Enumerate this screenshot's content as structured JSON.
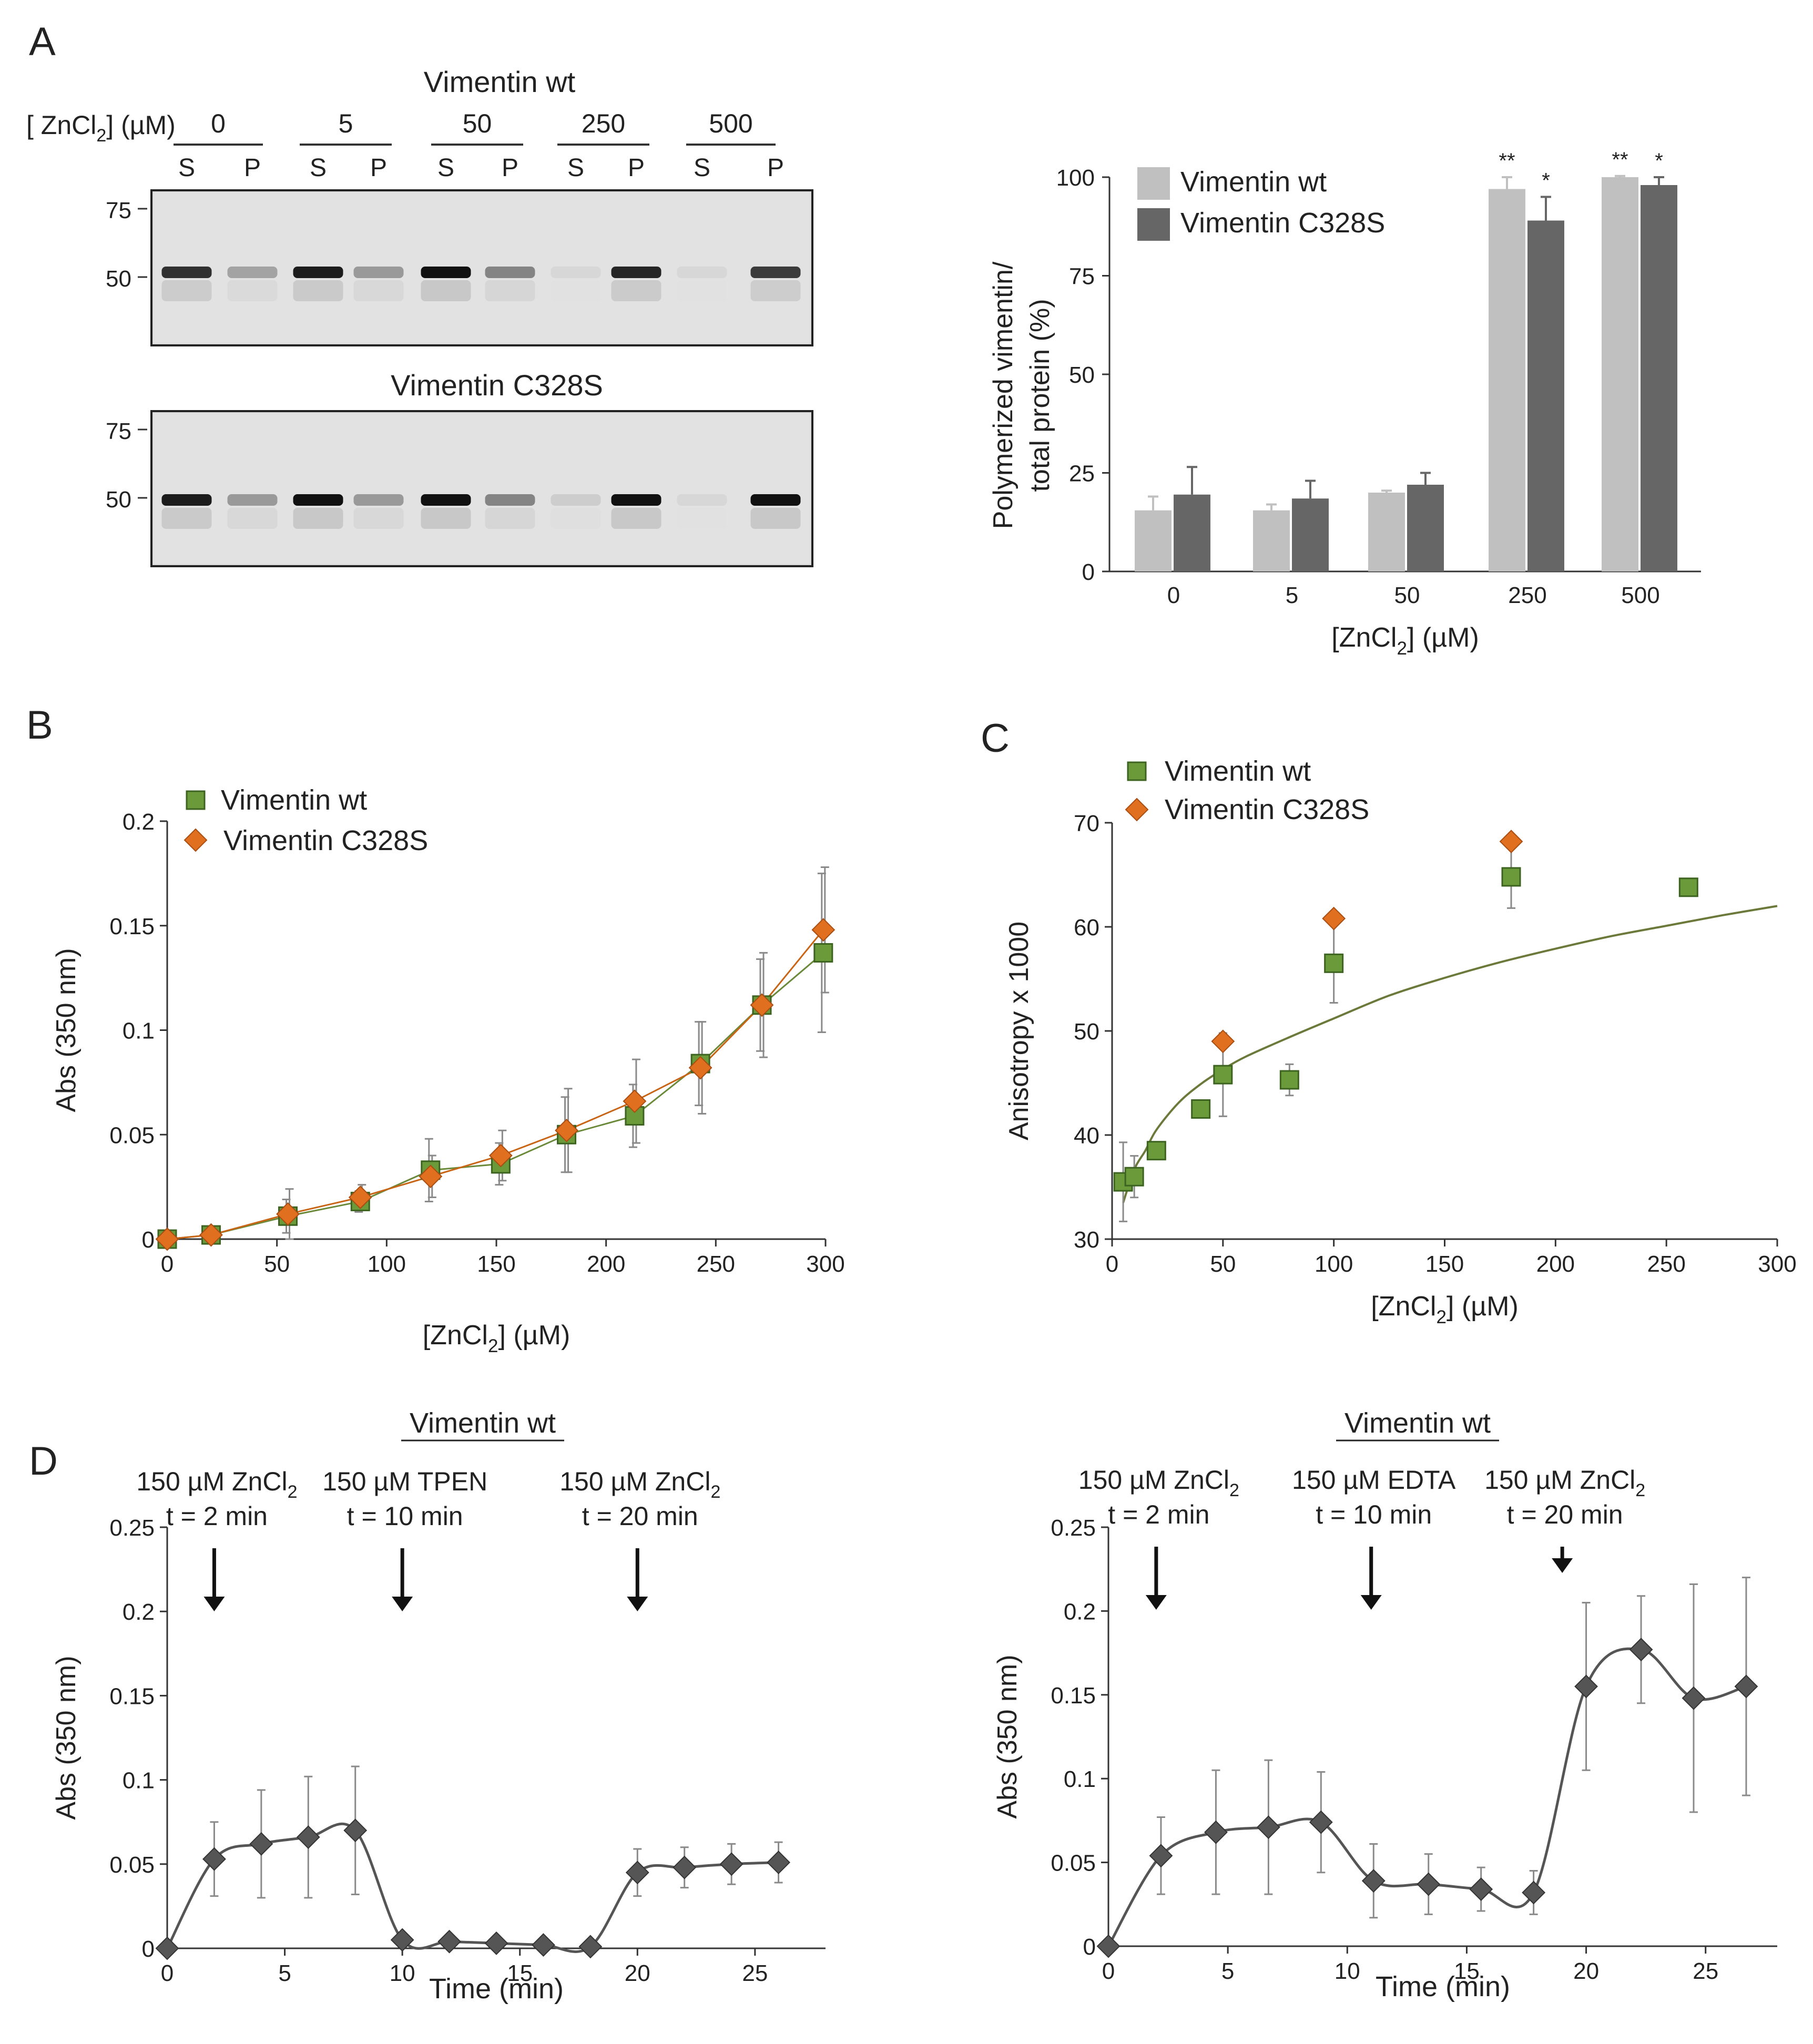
{
  "panel_labels": {
    "a": "A",
    "b": "B",
    "c": "C",
    "d": "D"
  },
  "colors": {
    "wt_bar": "#c0c0c0",
    "c328s_bar": "#666666",
    "wt_marker": "#6a9a3a",
    "c328s_marker": "#e07020",
    "line_gray": "#555555",
    "fit_line": "#6b7a3a"
  },
  "gels": {
    "wt_title": "Vimentin wt",
    "c328s_title": "Vimentin C328S",
    "conc_label_prefix": "[ ZnCl",
    "conc_label_sub": "2",
    "conc_label_suffix": "] (µM)",
    "concentrations": [
      "0",
      "5",
      "50",
      "250",
      "500"
    ],
    "fractions": [
      "S",
      "P",
      "S",
      "P",
      "S",
      "P",
      "S",
      "P",
      "S",
      "P"
    ],
    "markers": [
      "75",
      "50"
    ],
    "wt_band_intensity": [
      0.85,
      0.3,
      0.95,
      0.35,
      1.0,
      0.45,
      0.05,
      0.9,
      0.05,
      0.8
    ],
    "c328s_band_intensity": [
      0.95,
      0.35,
      1.0,
      0.35,
      1.0,
      0.45,
      0.1,
      1.0,
      0.05,
      1.0
    ]
  },
  "chart_data": [
    {
      "id": "A-bar",
      "type": "bar",
      "categories": [
        "0",
        "5",
        "50",
        "250",
        "500"
      ],
      "series": [
        {
          "name": "Vimentin wt",
          "values": [
            15.5,
            15.5,
            20,
            97,
            100
          ],
          "errors": [
            3.5,
            1.5,
            0.5,
            3,
            0.3
          ]
        },
        {
          "name": "Vimentin C328S",
          "values": [
            19.5,
            18.5,
            22,
            89,
            98
          ],
          "errors": [
            7,
            4.5,
            3,
            6,
            2
          ]
        }
      ],
      "significance": {
        "250": [
          "**",
          "*"
        ],
        "500": [
          "**",
          "*"
        ]
      },
      "yticks": [
        "0",
        "25",
        "50",
        "75",
        "100"
      ],
      "ylim": [
        0,
        100
      ],
      "ylabel_line1": "Polymerized vimentin/",
      "ylabel_line2": "total protein (%)",
      "xlabel_prefix": "[ZnCl",
      "xlabel_sub": "2",
      "xlabel_suffix": "] (µM)",
      "legend": [
        "Vimentin wt",
        "Vimentin C328S"
      ]
    },
    {
      "id": "B",
      "type": "line",
      "xlim": [
        0,
        300
      ],
      "ylim": [
        0,
        0.2
      ],
      "xticks": [
        "0",
        "50",
        "100",
        "150",
        "200",
        "250",
        "300"
      ],
      "yticks": [
        "0",
        "0.05",
        "0.1",
        "0.15",
        "0.2"
      ],
      "ylabel": "Abs (350 nm)",
      "xlabel_prefix": "[ZnCl",
      "xlabel_sub": "2",
      "xlabel_suffix": "] (µM)",
      "legend": [
        "Vimentin wt",
        "Vimentin C328S"
      ],
      "series": [
        {
          "name": "Vimentin wt",
          "x": [
            0,
            20,
            55,
            88,
            120,
            152,
            182,
            213,
            243,
            271,
            299
          ],
          "y": [
            0,
            0.002,
            0.011,
            0.018,
            0.033,
            0.036,
            0.05,
            0.059,
            0.084,
            0.112,
            0.137
          ],
          "err": [
            0,
            0.002,
            0.008,
            0.005,
            0.015,
            0.01,
            0.018,
            0.015,
            0.02,
            0.022,
            0.038
          ]
        },
        {
          "name": "Vimentin C328S",
          "x": [
            0,
            20,
            55,
            88,
            120,
            152,
            182,
            213,
            243,
            271,
            299
          ],
          "y": [
            0,
            0.002,
            0.012,
            0.02,
            0.03,
            0.04,
            0.052,
            0.066,
            0.082,
            0.112,
            0.148
          ],
          "err": [
            0,
            0.002,
            0.012,
            0.006,
            0.01,
            0.012,
            0.02,
            0.02,
            0.022,
            0.025,
            0.03
          ]
        }
      ]
    },
    {
      "id": "C",
      "type": "scatter",
      "xlim": [
        0,
        300
      ],
      "ylim": [
        30,
        70
      ],
      "xticks": [
        "0",
        "50",
        "100",
        "150",
        "200",
        "250",
        "300"
      ],
      "yticks": [
        "30",
        "40",
        "50",
        "60",
        "70"
      ],
      "ylabel": "Anisotropy x 1000",
      "xlabel_prefix": "[ZnCl",
      "xlabel_sub": "2",
      "xlabel_suffix": "] (µM)",
      "legend": [
        "Vimentin wt",
        "Vimentin C328S"
      ],
      "series": [
        {
          "name": "Vimentin wt",
          "x": [
            5,
            10,
            20,
            40,
            50,
            80,
            100,
            180,
            260
          ],
          "y": [
            35.5,
            36,
            38.5,
            42.5,
            45.8,
            45.3,
            56.5,
            64.8,
            63.8
          ],
          "err": [
            3.8,
            2.0,
            0.6,
            0.8,
            4.0,
            1.5,
            3.8,
            3.0,
            0.8
          ]
        },
        {
          "name": "Vimentin C328S",
          "x": [
            50,
            100,
            180
          ],
          "y": [
            49,
            60.8,
            68.2
          ],
          "err": [
            0,
            0,
            0
          ]
        }
      ],
      "fit": {
        "x": [
          5,
          10,
          15,
          20,
          30,
          40,
          50,
          60,
          80,
          100,
          125,
          150,
          175,
          200,
          225,
          250,
          275,
          300
        ],
        "y": [
          33.5,
          36.7,
          38.5,
          40.5,
          43.1,
          44.9,
          46.3,
          47.5,
          49.4,
          51.2,
          53.4,
          55.1,
          56.6,
          57.9,
          59.1,
          60.1,
          61.1,
          62.0
        ]
      }
    },
    {
      "id": "D-left",
      "type": "line",
      "title": "Vimentin wt",
      "xlim": [
        0,
        28
      ],
      "ylim": [
        0,
        0.25
      ],
      "xticks": [
        "0",
        "5",
        "10",
        "15",
        "20",
        "25"
      ],
      "yticks": [
        "0",
        "0.05",
        "0.1",
        "0.15",
        "0.2",
        "0.25"
      ],
      "ylabel": "Abs (350 nm)",
      "xlabel": "Time (min)",
      "annotations": [
        {
          "line1": "150 µM ZnCl",
          "sub": "2",
          "line2": "t = 2 min",
          "x": 2
        },
        {
          "line1": "150 µM TPEN",
          "sub": "",
          "line2": "t = 10 min",
          "x": 10
        },
        {
          "line1": "150 µM ZnCl",
          "sub": "2",
          "line2": "t = 20 min",
          "x": 20
        }
      ],
      "series": [
        {
          "name": "Vimentin wt",
          "x": [
            0,
            2,
            4,
            6,
            8,
            10,
            12,
            14,
            16,
            18,
            20,
            22,
            24,
            26
          ],
          "y": [
            0,
            0.053,
            0.062,
            0.066,
            0.07,
            0.005,
            0.004,
            0.003,
            0.002,
            0.001,
            0.045,
            0.048,
            0.05,
            0.051
          ],
          "err": [
            0,
            0.022,
            0.032,
            0.036,
            0.038,
            0,
            0,
            0,
            0,
            0,
            0.014,
            0.012,
            0.012,
            0.012
          ]
        }
      ]
    },
    {
      "id": "D-right",
      "type": "line",
      "title": "Vimentin wt",
      "xlim": [
        0,
        28
      ],
      "ylim": [
        0,
        0.25
      ],
      "xticks": [
        "0",
        "5",
        "10",
        "15",
        "20",
        "25"
      ],
      "yticks": [
        "0",
        "0.05",
        "0.1",
        "0.15",
        "0.2",
        "0.25"
      ],
      "ylabel": "Abs (350 nm)",
      "xlabel": "Time (min)",
      "annotations": [
        {
          "line1": "150 µM ZnCl",
          "sub": "2",
          "line2": "t = 2 min",
          "x": 2
        },
        {
          "line1": "150 µM EDTA",
          "sub": "",
          "line2": "t = 10 min",
          "x": 11
        },
        {
          "line1": "150 µM ZnCl",
          "sub": "2",
          "line2": "t = 20 min",
          "x": 19
        }
      ],
      "series": [
        {
          "name": "Vimentin wt",
          "x": [
            0,
            2.2,
            4.5,
            6.7,
            8.9,
            11.1,
            13.4,
            15.6,
            17.8,
            20,
            22.3,
            24.5,
            26.7
          ],
          "y": [
            0,
            0.054,
            0.068,
            0.071,
            0.074,
            0.039,
            0.037,
            0.034,
            0.032,
            0.155,
            0.177,
            0.148,
            0.155
          ],
          "err": [
            0,
            0.023,
            0.037,
            0.04,
            0.03,
            0.022,
            0.018,
            0.013,
            0.013,
            0.05,
            0.032,
            0.068,
            0.065
          ]
        }
      ]
    }
  ]
}
